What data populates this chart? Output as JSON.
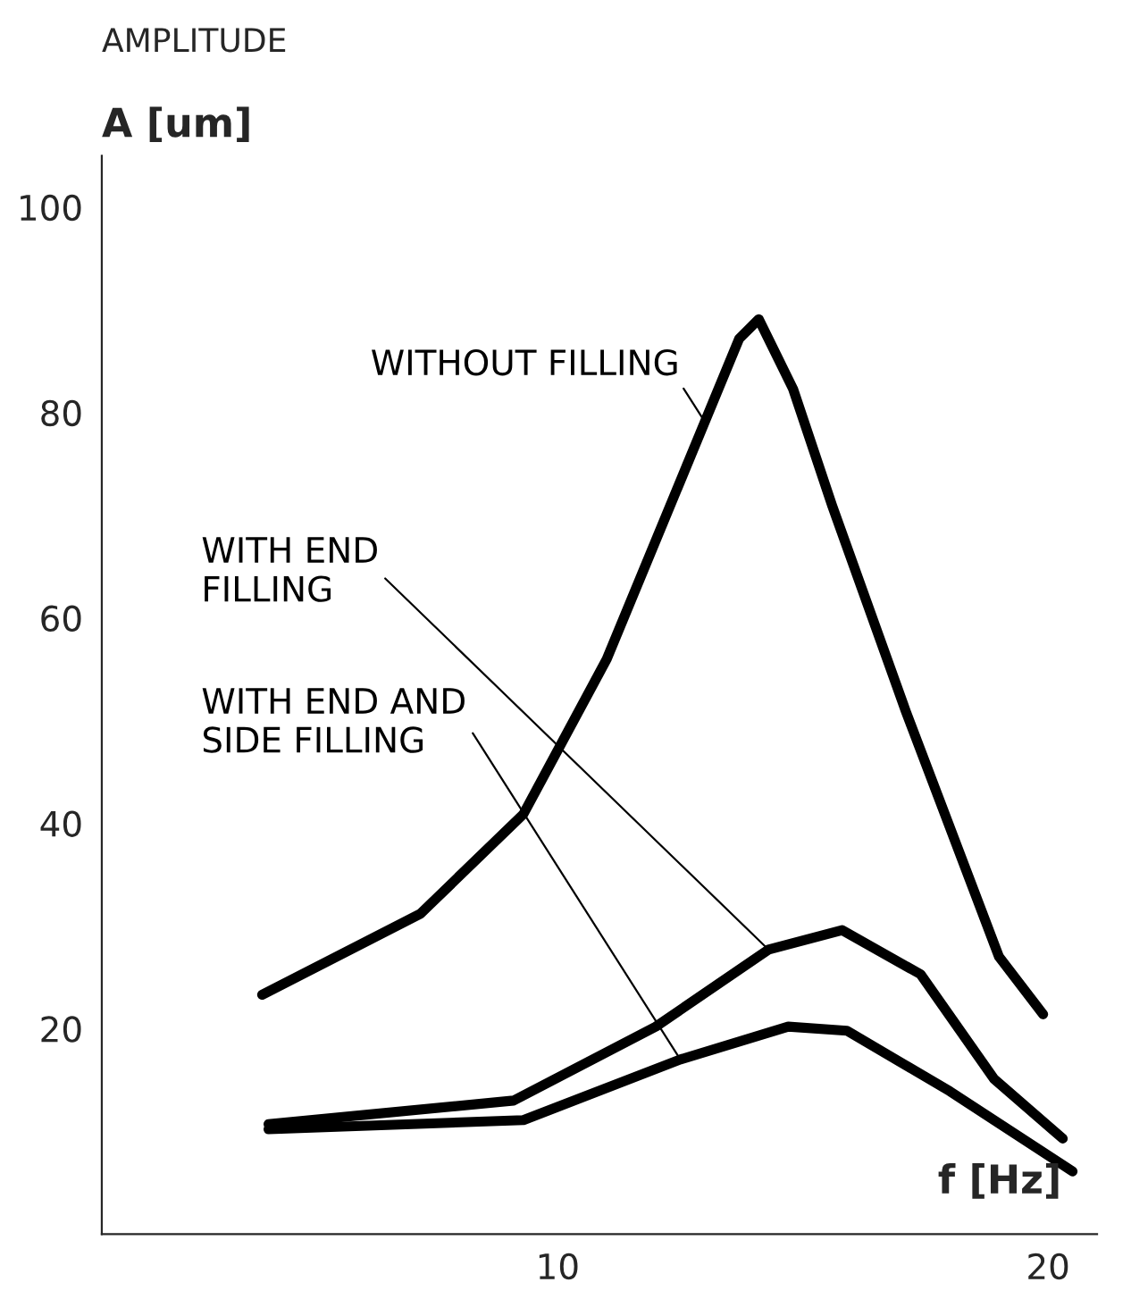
{
  "chart_data": {
    "type": "line",
    "title": "AMPLITUDE",
    "ylabel": "A [um]",
    "xlabel": "f [Hz]",
    "xlim": [
      0.7,
      21
    ],
    "ylim": [
      0,
      105
    ],
    "xticks": [
      10,
      20
    ],
    "yticks": [
      20,
      40,
      60,
      80,
      100
    ],
    "grid": false,
    "legend": false,
    "marker": "none",
    "line_style": "solid",
    "series": [
      {
        "name": "WITHOUT FILLING",
        "color": "#000000",
        "x": [
          3.97,
          7.2,
          9.3,
          11.0,
          13.0,
          13.7,
          14.1,
          14.8,
          15.6,
          17.1,
          19.0,
          19.9
        ],
        "values": [
          23.3,
          31.2,
          40.9,
          56.0,
          79.1,
          87.2,
          89.1,
          82.3,
          70.9,
          50.9,
          27.0,
          21.4
        ]
      },
      {
        "name": "WITH END\nFILLING",
        "color": "#000000",
        "x": [
          4.1,
          9.1,
          12.0,
          14.3,
          15.8,
          17.4,
          18.9,
          20.3
        ],
        "values": [
          10.7,
          13.0,
          20.2,
          27.7,
          29.6,
          25.3,
          15.1,
          9.3
        ]
      },
      {
        "name": "WITH END AND\nSIDE FILLING",
        "color": "#000000",
        "x": [
          4.1,
          9.3,
          12.5,
          14.7,
          15.9,
          18.0,
          20.5
        ],
        "values": [
          10.2,
          11.1,
          17.0,
          20.2,
          19.8,
          13.9,
          6.1
        ]
      }
    ]
  }
}
